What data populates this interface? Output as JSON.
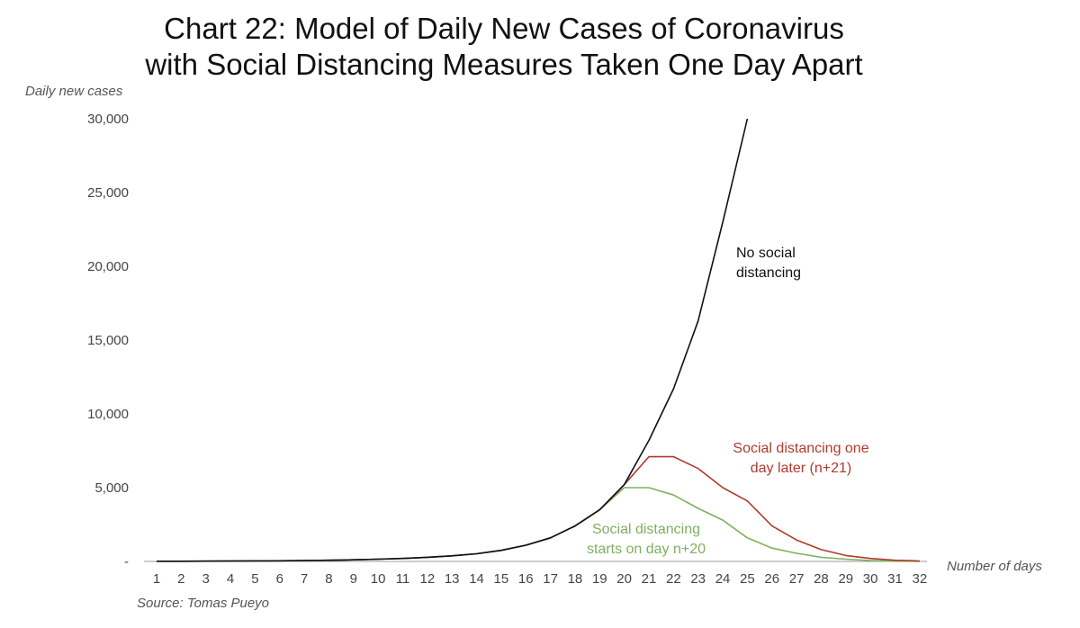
{
  "title_line1": "Chart 22: Model of Daily New Cases of Coronavirus",
  "title_line2": "with Social Distancing Measures Taken One Day Apart",
  "source": "Source: Tomas Pueyo",
  "chart_data": {
    "type": "line",
    "title": "Chart 22: Model of Daily New Cases of Coronavirus with Social Distancing Measures Taken One Day Apart",
    "xlabel": "Number of days",
    "ylabel": "Daily new cases",
    "ylim": [
      0,
      30000
    ],
    "yticks": [
      "-",
      "5,000",
      "10,000",
      "15,000",
      "20,000",
      "25,000",
      "30,000"
    ],
    "ytick_values": [
      0,
      5000,
      10000,
      15000,
      20000,
      25000,
      30000
    ],
    "x": [
      1,
      2,
      3,
      4,
      5,
      6,
      7,
      8,
      9,
      10,
      11,
      12,
      13,
      14,
      15,
      16,
      17,
      18,
      19,
      20,
      21,
      22,
      23,
      24,
      25,
      26,
      27,
      28,
      29,
      30,
      31,
      32
    ],
    "grid": false,
    "legend": "none",
    "series": [
      {
        "name": "No social distancing",
        "color": "#111111",
        "x": [
          1,
          2,
          3,
          4,
          5,
          6,
          7,
          8,
          9,
          10,
          11,
          12,
          13,
          14,
          15,
          16,
          17,
          18,
          19,
          20,
          21,
          22,
          23,
          24,
          25
        ],
        "values": [
          10,
          15,
          20,
          25,
          35,
          45,
          60,
          80,
          110,
          150,
          200,
          280,
          380,
          520,
          750,
          1100,
          1600,
          2400,
          3500,
          5200,
          8200,
          11700,
          16300,
          23000,
          30000
        ]
      },
      {
        "name": "",
        "color": "#b03a2e",
        "x": [
          1,
          2,
          3,
          4,
          5,
          6,
          7,
          8,
          9,
          10,
          11,
          12,
          13,
          14,
          15,
          16,
          17,
          18,
          19,
          20,
          21,
          22,
          23,
          24,
          25,
          26,
          27,
          28,
          29,
          30,
          31,
          32
        ],
        "values": [
          10,
          15,
          20,
          25,
          35,
          45,
          60,
          80,
          110,
          150,
          200,
          280,
          380,
          520,
          750,
          1100,
          1600,
          2400,
          3500,
          5200,
          7100,
          7100,
          6300,
          5000,
          4100,
          2400,
          1450,
          800,
          400,
          200,
          80,
          30
        ]
      },
      {
        "name": "",
        "color": "#7fb05f",
        "x": [
          1,
          2,
          3,
          4,
          5,
          6,
          7,
          8,
          9,
          10,
          11,
          12,
          13,
          14,
          15,
          16,
          17,
          18,
          19,
          20,
          21,
          22,
          23,
          24,
          25,
          26,
          27,
          28,
          29,
          30,
          31,
          32
        ],
        "values": [
          10,
          15,
          20,
          25,
          35,
          45,
          60,
          80,
          110,
          150,
          200,
          280,
          380,
          520,
          750,
          1100,
          1600,
          2400,
          3500,
          5000,
          5000,
          4500,
          3600,
          2800,
          1600,
          900,
          550,
          280,
          150,
          60,
          20,
          5
        ]
      }
    ],
    "annotations": [
      {
        "lines": [
          "No social",
          "distancing"
        ],
        "color": "#111111"
      },
      {
        "lines": [
          "Social distancing one",
          "day later (n+21)"
        ],
        "color": "#b03a2e"
      },
      {
        "lines": [
          "Social distancing",
          "starts on day n+20"
        ],
        "color": "#7fb05f"
      }
    ]
  }
}
